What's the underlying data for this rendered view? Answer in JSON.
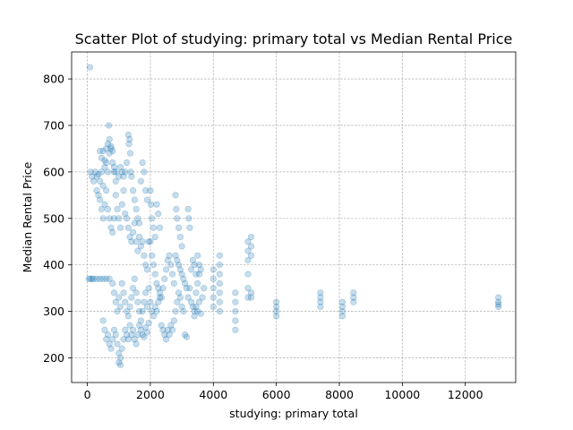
{
  "chart_data": {
    "type": "scatter",
    "title": "Scatter Plot of studying: primary total vs Median Rental Price",
    "xlabel": "studying: primary total",
    "ylabel": "Median Rental Price",
    "xlim": [
      -500,
      13600
    ],
    "ylim": [
      147,
      858
    ],
    "xticks": [
      0,
      2000,
      4000,
      6000,
      8000,
      10000,
      12000
    ],
    "yticks": [
      200,
      300,
      400,
      500,
      600,
      700,
      800
    ],
    "grid": true,
    "legend": "none",
    "marker_color": "#1f77b4",
    "marker_alpha": 0.25,
    "points": [
      [
        80,
        825
      ],
      [
        100,
        600
      ],
      [
        150,
        590
      ],
      [
        200,
        580
      ],
      [
        250,
        600
      ],
      [
        300,
        590
      ],
      [
        350,
        595
      ],
      [
        400,
        580
      ],
      [
        450,
        600
      ],
      [
        500,
        570
      ],
      [
        550,
        610
      ],
      [
        600,
        620
      ],
      [
        650,
        600
      ],
      [
        700,
        640
      ],
      [
        750,
        655
      ],
      [
        800,
        620
      ],
      [
        850,
        600
      ],
      [
        900,
        580
      ],
      [
        400,
        645
      ],
      [
        450,
        630
      ],
      [
        500,
        645
      ],
      [
        550,
        625
      ],
      [
        600,
        650
      ],
      [
        650,
        660
      ],
      [
        700,
        670
      ],
      [
        680,
        700
      ],
      [
        750,
        650
      ],
      [
        800,
        645
      ],
      [
        850,
        610
      ],
      [
        900,
        600
      ],
      [
        300,
        560
      ],
      [
        350,
        550
      ],
      [
        400,
        540
      ],
      [
        450,
        520
      ],
      [
        500,
        500
      ],
      [
        550,
        530
      ],
      [
        600,
        560
      ],
      [
        650,
        520
      ],
      [
        700,
        500
      ],
      [
        750,
        480
      ],
      [
        800,
        470
      ],
      [
        850,
        500
      ],
      [
        900,
        550
      ],
      [
        950,
        520
      ],
      [
        1000,
        500
      ],
      [
        1050,
        480
      ],
      [
        1100,
        530
      ],
      [
        1150,
        560
      ],
      [
        1000,
        590
      ],
      [
        1050,
        610
      ],
      [
        1100,
        600
      ],
      [
        1150,
        590
      ],
      [
        1200,
        600
      ],
      [
        1250,
        620
      ],
      [
        1300,
        680
      ],
      [
        1320,
        660
      ],
      [
        1340,
        670
      ],
      [
        1360,
        640
      ],
      [
        1380,
        600
      ],
      [
        1400,
        590
      ],
      [
        1450,
        560
      ],
      [
        1500,
        540
      ],
      [
        1550,
        520
      ],
      [
        1600,
        500
      ],
      [
        1650,
        490
      ],
      [
        1700,
        580
      ],
      [
        1750,
        620
      ],
      [
        1800,
        600
      ],
      [
        1850,
        560
      ],
      [
        1900,
        540
      ],
      [
        1200,
        510
      ],
      [
        1250,
        500
      ],
      [
        1300,
        480
      ],
      [
        1350,
        460
      ],
      [
        1400,
        450
      ],
      [
        1450,
        470
      ],
      [
        1500,
        490
      ],
      [
        1550,
        450
      ],
      [
        1600,
        430
      ],
      [
        1650,
        460
      ],
      [
        1700,
        440
      ],
      [
        1750,
        450
      ],
      [
        1800,
        420
      ],
      [
        1850,
        400
      ],
      [
        1900,
        390
      ],
      [
        1950,
        450
      ],
      [
        50,
        370
      ],
      [
        100,
        370
      ],
      [
        150,
        370
      ],
      [
        200,
        370
      ],
      [
        300,
        370
      ],
      [
        400,
        370
      ],
      [
        500,
        370
      ],
      [
        600,
        370
      ],
      [
        700,
        370
      ],
      [
        800,
        360
      ],
      [
        850,
        340
      ],
      [
        900,
        320
      ],
      [
        950,
        300
      ],
      [
        1000,
        330
      ],
      [
        1050,
        310
      ],
      [
        1100,
        360
      ],
      [
        1150,
        340
      ],
      [
        1200,
        320
      ],
      [
        1250,
        300
      ],
      [
        1300,
        290
      ],
      [
        1350,
        310
      ],
      [
        1400,
        330
      ],
      [
        1450,
        350
      ],
      [
        1500,
        370
      ],
      [
        1550,
        340
      ],
      [
        1600,
        320
      ],
      [
        1650,
        300
      ],
      [
        1700,
        280
      ],
      [
        1750,
        300
      ],
      [
        1800,
        320
      ],
      [
        1850,
        340
      ],
      [
        1900,
        310
      ],
      [
        1950,
        350
      ],
      [
        500,
        280
      ],
      [
        550,
        260
      ],
      [
        600,
        240
      ],
      [
        650,
        250
      ],
      [
        700,
        230
      ],
      [
        750,
        220
      ],
      [
        800,
        240
      ],
      [
        850,
        260
      ],
      [
        900,
        250
      ],
      [
        950,
        230
      ],
      [
        1000,
        210
      ],
      [
        1050,
        200
      ],
      [
        1000,
        190
      ],
      [
        1050,
        185
      ],
      [
        1100,
        220
      ],
      [
        1150,
        240
      ],
      [
        1200,
        260
      ],
      [
        1250,
        250
      ],
      [
        1300,
        240
      ],
      [
        1350,
        270
      ],
      [
        1400,
        250
      ],
      [
        1450,
        260
      ],
      [
        1500,
        240
      ],
      [
        1550,
        230
      ],
      [
        1600,
        250
      ],
      [
        1650,
        270
      ],
      [
        1700,
        260
      ],
      [
        1750,
        250
      ],
      [
        1800,
        245
      ],
      [
        1850,
        265
      ],
      [
        1900,
        255
      ],
      [
        1950,
        275
      ],
      [
        2000,
        560
      ],
      [
        2020,
        530
      ],
      [
        2050,
        500
      ],
      [
        2100,
        480
      ],
      [
        2150,
        460
      ],
      [
        2200,
        530
      ],
      [
        2250,
        510
      ],
      [
        2300,
        480
      ],
      [
        2000,
        450
      ],
      [
        2050,
        420
      ],
      [
        2100,
        400
      ],
      [
        2150,
        380
      ],
      [
        2200,
        360
      ],
      [
        2250,
        350
      ],
      [
        2300,
        340
      ],
      [
        2350,
        330
      ],
      [
        2400,
        350
      ],
      [
        2450,
        370
      ],
      [
        2500,
        390
      ],
      [
        2550,
        410
      ],
      [
        2600,
        420
      ],
      [
        2650,
        400
      ],
      [
        2700,
        380
      ],
      [
        2750,
        360
      ],
      [
        2800,
        550
      ],
      [
        2820,
        520
      ],
      [
        2850,
        500
      ],
      [
        2900,
        480
      ],
      [
        2950,
        460
      ],
      [
        3000,
        440
      ],
      [
        2800,
        420
      ],
      [
        2850,
        410
      ],
      [
        2900,
        400
      ],
      [
        2950,
        390
      ],
      [
        3000,
        380
      ],
      [
        3050,
        370
      ],
      [
        3100,
        360
      ],
      [
        3150,
        350
      ],
      [
        3200,
        520
      ],
      [
        3220,
        500
      ],
      [
        3250,
        480
      ],
      [
        2000,
        320
      ],
      [
        2050,
        300
      ],
      [
        2100,
        290
      ],
      [
        2150,
        310
      ],
      [
        2200,
        300
      ],
      [
        2250,
        320
      ],
      [
        2300,
        330
      ],
      [
        2350,
        270
      ],
      [
        2400,
        260
      ],
      [
        2450,
        250
      ],
      [
        2500,
        240
      ],
      [
        2550,
        260
      ],
      [
        2600,
        250
      ],
      [
        2650,
        270
      ],
      [
        2700,
        260
      ],
      [
        2750,
        280
      ],
      [
        2800,
        300
      ],
      [
        2850,
        320
      ],
      [
        2900,
        340
      ],
      [
        2950,
        330
      ],
      [
        3000,
        310
      ],
      [
        3050,
        300
      ],
      [
        3100,
        250
      ],
      [
        3150,
        245
      ],
      [
        3200,
        330
      ],
      [
        3250,
        350
      ],
      [
        3300,
        320
      ],
      [
        3350,
        310
      ],
      [
        3400,
        300
      ],
      [
        3450,
        340
      ],
      [
        3500,
        360
      ],
      [
        3550,
        380
      ],
      [
        3600,
        390
      ],
      [
        3650,
        330
      ],
      [
        3700,
        350
      ],
      [
        3300,
        390
      ],
      [
        3350,
        410
      ],
      [
        3400,
        400
      ],
      [
        3450,
        380
      ],
      [
        3500,
        420
      ],
      [
        3550,
        400
      ],
      [
        3400,
        290
      ],
      [
        3450,
        310
      ],
      [
        3500,
        300
      ],
      [
        3550,
        320
      ],
      [
        3600,
        295
      ],
      [
        4000,
        390
      ],
      [
        4000,
        370
      ],
      [
        4000,
        350
      ],
      [
        4000,
        330
      ],
      [
        4000,
        310
      ],
      [
        4200,
        420
      ],
      [
        4200,
        400
      ],
      [
        4200,
        380
      ],
      [
        4200,
        360
      ],
      [
        4200,
        340
      ],
      [
        4200,
        320
      ],
      [
        4200,
        300
      ],
      [
        4700,
        340
      ],
      [
        4700,
        320
      ],
      [
        4700,
        300
      ],
      [
        4700,
        280
      ],
      [
        4700,
        260
      ],
      [
        5100,
        450
      ],
      [
        5100,
        430
      ],
      [
        5100,
        410
      ],
      [
        5100,
        380
      ],
      [
        5100,
        350
      ],
      [
        5100,
        330
      ],
      [
        5200,
        460
      ],
      [
        5200,
        440
      ],
      [
        5200,
        420
      ],
      [
        5200,
        340
      ],
      [
        5200,
        330
      ],
      [
        6000,
        320
      ],
      [
        6000,
        310
      ],
      [
        6000,
        300
      ],
      [
        6000,
        290
      ],
      [
        7400,
        340
      ],
      [
        7400,
        330
      ],
      [
        7400,
        320
      ],
      [
        7400,
        310
      ],
      [
        8100,
        320
      ],
      [
        8100,
        310
      ],
      [
        8100,
        300
      ],
      [
        8100,
        290
      ],
      [
        8450,
        340
      ],
      [
        8450,
        330
      ],
      [
        8450,
        320
      ],
      [
        13050,
        330
      ],
      [
        13050,
        320
      ],
      [
        13050,
        315
      ],
      [
        13050,
        310
      ]
    ]
  }
}
